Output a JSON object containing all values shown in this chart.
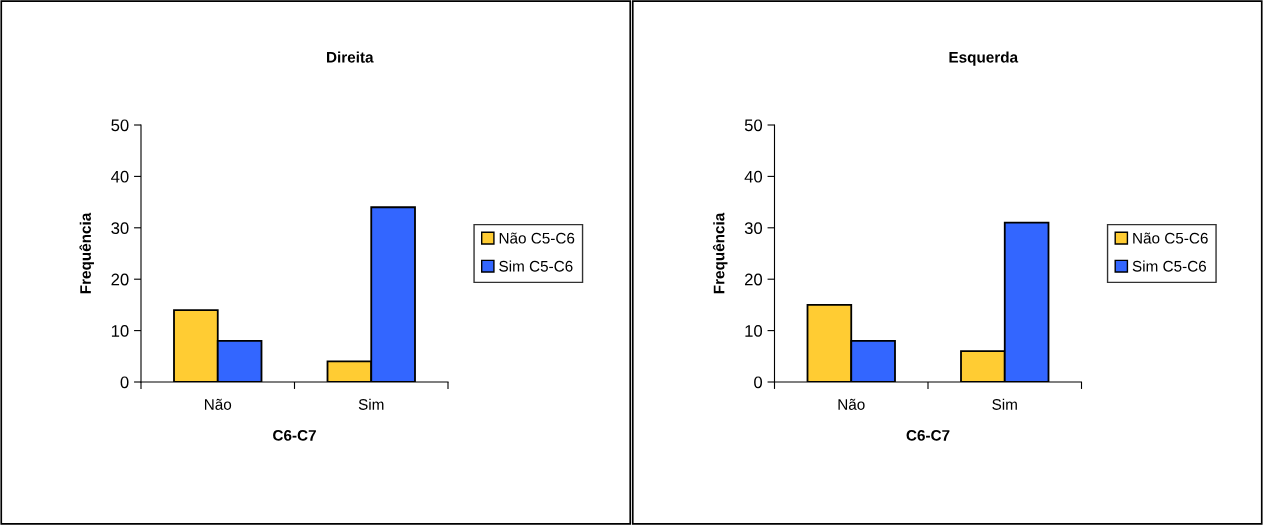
{
  "chart_data": [
    {
      "type": "bar",
      "title": "Direita",
      "xlabel": "C6-C7",
      "ylabel": "Frequência",
      "categories": [
        "Não",
        "Sim"
      ],
      "series": [
        {
          "name": "Não C5-C6",
          "color": "#ffcc33",
          "values": [
            14,
            4
          ]
        },
        {
          "name": "Sim C5-C6",
          "color": "#3366ff",
          "values": [
            8,
            34
          ]
        }
      ],
      "ylim": [
        0,
        50
      ],
      "yticks": [
        0,
        10,
        20,
        30,
        40,
        50
      ],
      "grid": false,
      "legend": "right"
    },
    {
      "type": "bar",
      "title": "Esquerda",
      "xlabel": "C6-C7",
      "ylabel": "Frequência",
      "categories": [
        "Não",
        "Sim"
      ],
      "series": [
        {
          "name": "Não C5-C6",
          "color": "#ffcc33",
          "values": [
            15,
            6
          ]
        },
        {
          "name": "Sim C5-C6",
          "color": "#3366ff",
          "values": [
            8,
            31
          ]
        }
      ],
      "ylim": [
        0,
        50
      ],
      "yticks": [
        0,
        10,
        20,
        30,
        40,
        50
      ],
      "grid": false,
      "legend": "right"
    }
  ]
}
